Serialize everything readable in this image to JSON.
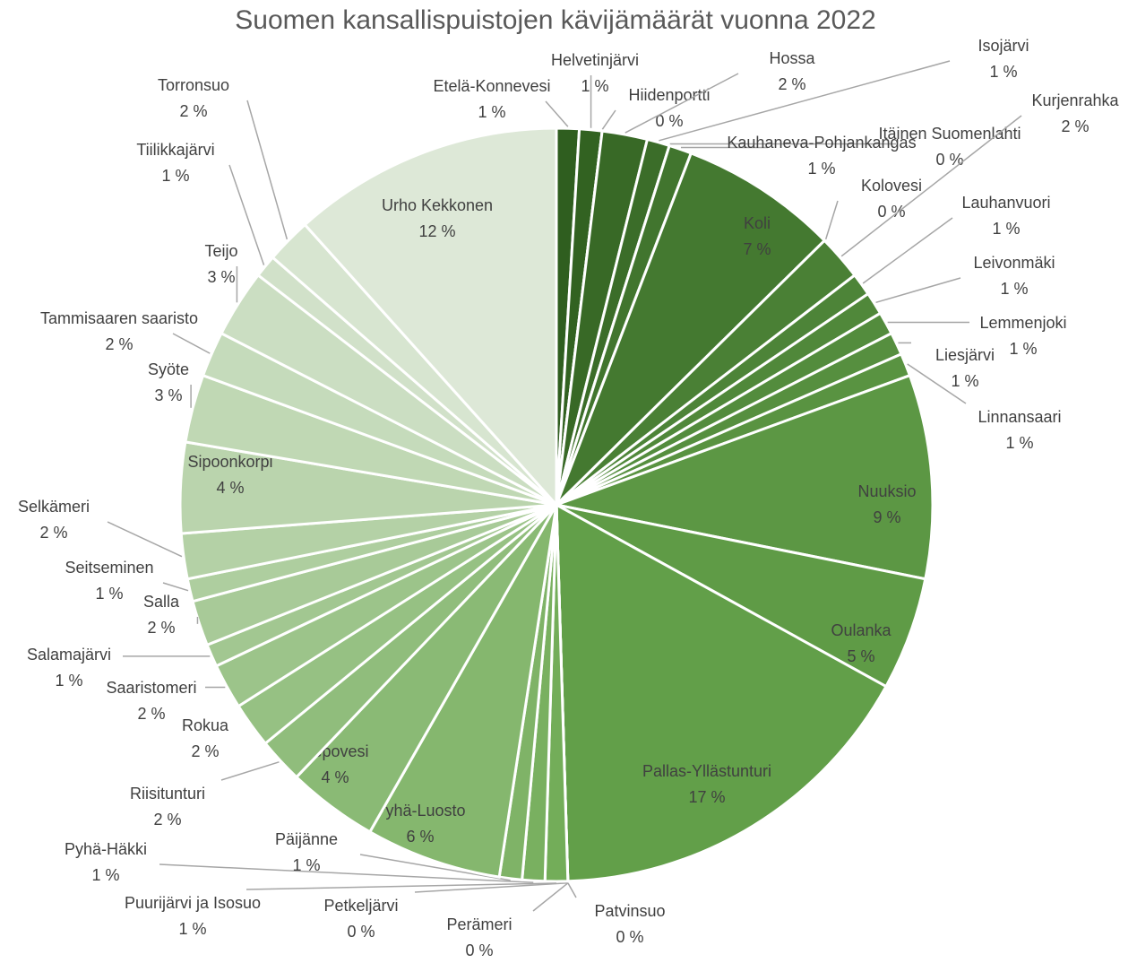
{
  "chart_data": {
    "type": "pie",
    "title": "Suomen kansallispuistojen kävijämäärät vuonna 2022",
    "categories": [
      "Etelä-Konnevesi",
      "Helvetinjärvi",
      "Hiidenportti",
      "Hossa",
      "Isojärvi",
      "Itäinen Suomenlahti",
      "Kauhaneva-Pohjankangas",
      "Koli",
      "Kolovesi",
      "Kurjenrahka",
      "Lauhanvuori",
      "Leivonmäki",
      "Lemmenjoki",
      "Liesjärvi",
      "Linnansaari",
      "Nuuksio",
      "Oulanka",
      "Pallas-Yllästunturi",
      "Patvinsuo",
      "Perämeri",
      "Petkeljärvi",
      "Puurijärvi ja Isosuo",
      "Pyhä-Häkki",
      "Päijänne",
      "Pyhä-Luosto",
      "Repovesi",
      "Riisitunturi",
      "Rokua",
      "Saaristomeri",
      "Salamajärvi",
      "Salla",
      "Seitseminen",
      "Selkämeri",
      "Sipoonkorpi",
      "Syöte",
      "Tammisaaren saaristo",
      "Teijo",
      "Tiilikkajärvi",
      "Torronsuo",
      "Urho Kekkonen"
    ],
    "values": [
      1,
      1,
      0,
      2,
      1,
      0,
      1,
      7,
      0,
      2,
      1,
      1,
      1,
      1,
      1,
      9,
      5,
      17,
      0,
      0,
      0,
      1,
      1,
      1,
      6,
      4,
      2,
      2,
      2,
      1,
      2,
      1,
      2,
      4,
      3,
      2,
      3,
      1,
      2,
      12
    ],
    "value_labels": [
      "1 %",
      "1 %",
      "0 %",
      "2 %",
      "1 %",
      "0 %",
      "1 %",
      "7 %",
      "0 %",
      "2 %",
      "1 %",
      "1 %",
      "1 %",
      "1 %",
      "1 %",
      "9 %",
      "5 %",
      "17 %",
      "0 %",
      "0 %",
      "0 %",
      "1 %",
      "1 %",
      "1 %",
      "6 %",
      "4 %",
      "2 %",
      "2 %",
      "2 %",
      "1 %",
      "2 %",
      "1 %",
      "2 %",
      "4 %",
      "3 %",
      "2 %",
      "3 %",
      "1 %",
      "2 %",
      "12 %"
    ],
    "palette": [
      "#2f5e1f",
      "#6aa84f",
      "#dde8d7"
    ]
  }
}
